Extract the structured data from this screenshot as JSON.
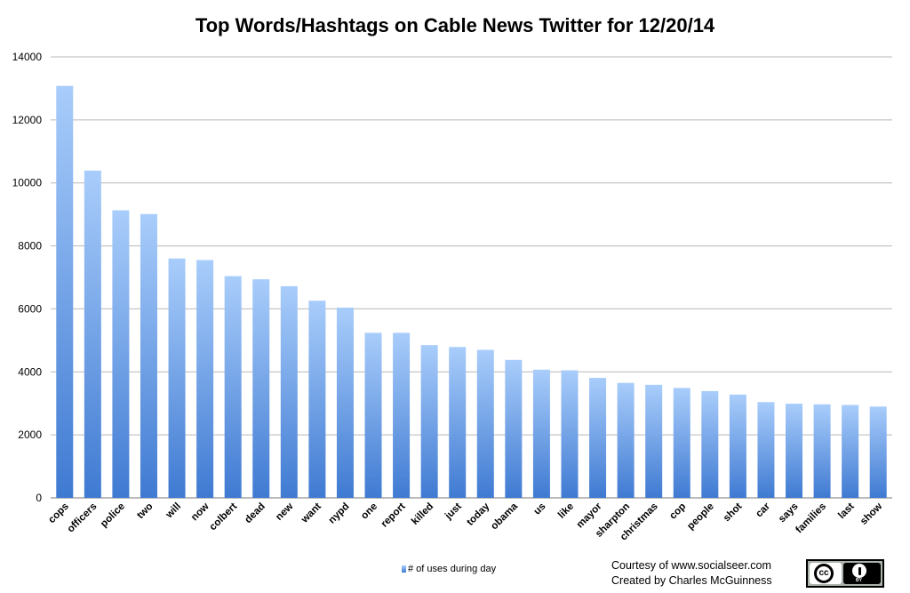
{
  "chart_data": {
    "type": "bar",
    "title": "Top Words/Hashtags on Cable News Twitter for 12/20/14",
    "xlabel": "",
    "ylabel": "",
    "categories": [
      "cops",
      "officers",
      "police",
      "two",
      "will",
      "now",
      "colbert",
      "dead",
      "new",
      "want",
      "nypd",
      "one",
      "report",
      "killed",
      "just",
      "today",
      "obama",
      "us",
      "like",
      "mayor",
      "sharpton",
      "christmas",
      "cop",
      "people",
      "shot",
      "car",
      "says",
      "families",
      "last",
      "show"
    ],
    "series": [
      {
        "name": "# of uses during day",
        "values": [
          13080,
          10390,
          9130,
          9010,
          7600,
          7550,
          7040,
          6940,
          6720,
          6260,
          6040,
          5240,
          5240,
          4850,
          4790,
          4700,
          4380,
          4070,
          4050,
          3810,
          3650,
          3590,
          3490,
          3390,
          3280,
          3040,
          2990,
          2970,
          2950,
          2900
        ]
      }
    ],
    "ylim": [
      0,
      14000
    ],
    "yticks": [
      0,
      2000,
      4000,
      6000,
      8000,
      10000,
      12000,
      14000
    ],
    "grid": true,
    "legend_position": "bottom",
    "bar_color_top": "#a9cdfb",
    "bar_color_bottom": "#3f7ad2"
  },
  "credits": {
    "line1": "Courtesy of www.socialseer.com",
    "line2": "Created by Charles McGuinness"
  },
  "badge": {
    "icon": "creative-commons-by-icon",
    "cc_text": "cc",
    "by_text": "BY"
  }
}
